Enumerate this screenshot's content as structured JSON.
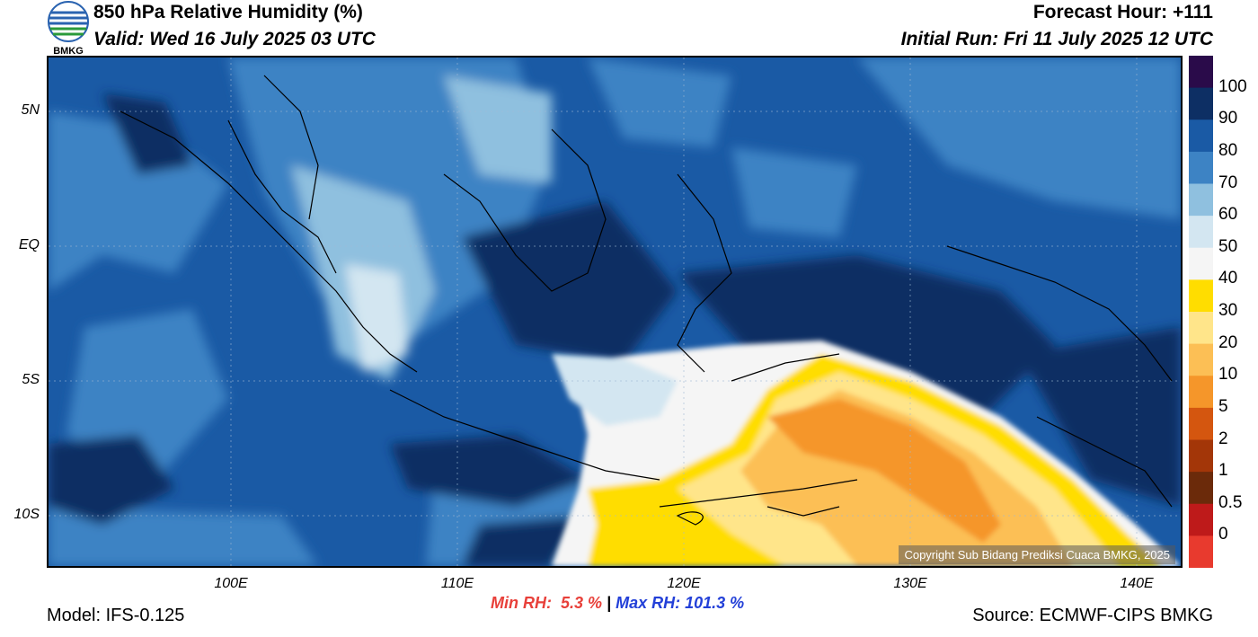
{
  "header": {
    "title": "850 hPa Relative Humidity (%)",
    "valid": "Valid: Wed 16 July 2025 03 UTC",
    "forecast_hour": "Forecast Hour: +111",
    "initial_run": "Initial Run: Fri 11 July 2025 12 UTC"
  },
  "logo": {
    "text": "BMKG",
    "icon": "bmkg-logo"
  },
  "map": {
    "lat_ticks": [
      "5N",
      "EQ",
      "5S",
      "10S"
    ],
    "lon_ticks": [
      "100E",
      "110E",
      "120E",
      "130E",
      "140E"
    ],
    "copyright": "Copyright Sub Bidang Prediksi Cuaca BMKG, 2025"
  },
  "stats": {
    "min_label": "Min RH:",
    "min_value": "5.3 %",
    "separator": "|",
    "max_label": "Max RH:",
    "max_value": "101.3 %"
  },
  "footer": {
    "model": "Model: IFS-0.125",
    "source": "Source: ECMWF-CIPS BMKG"
  },
  "colorbar": {
    "labels": [
      "100",
      "90",
      "80",
      "70",
      "60",
      "50",
      "40",
      "30",
      "20",
      "10",
      "5",
      "2",
      "1",
      "0.5",
      "0"
    ],
    "colors": [
      "#2a0b4a",
      "#0d2f64",
      "#1a5aa5",
      "#3d83c4",
      "#8fc0df",
      "#d3e6f1",
      "#f5f5f5",
      "#ffdd00",
      "#ffe58a",
      "#fcbf55",
      "#f5962a",
      "#d4560f",
      "#a33608",
      "#6b2a0a",
      "#be1a1a",
      "#e83a2e"
    ]
  }
}
